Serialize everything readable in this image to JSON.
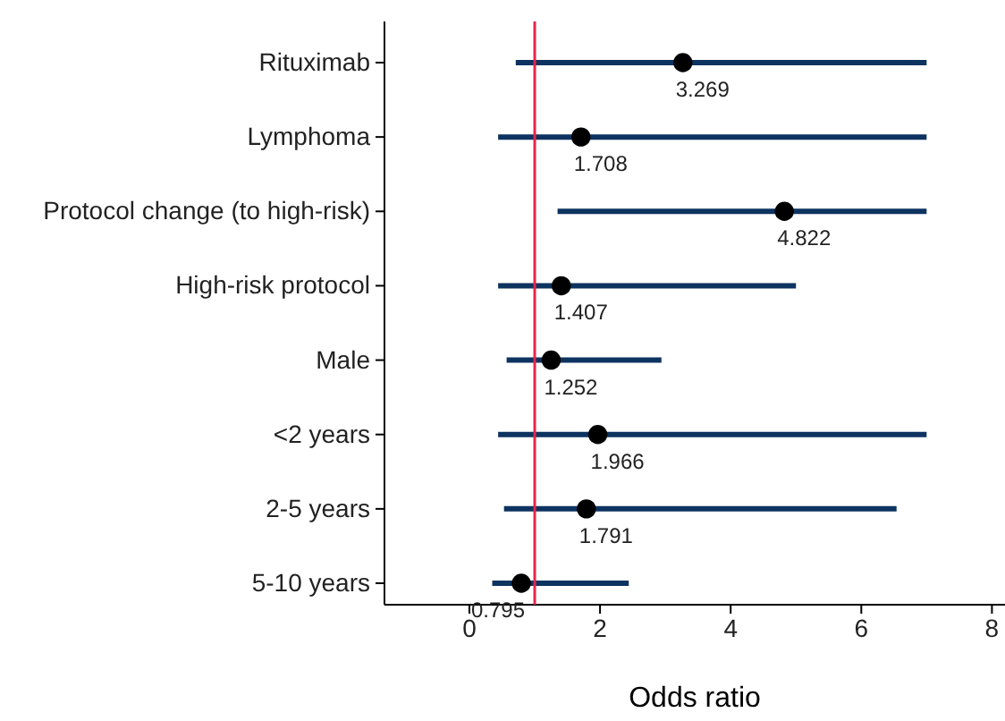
{
  "chart_data": {
    "type": "scatter",
    "orientation": "horizontal",
    "xlabel": "Odds ratio",
    "categories": [
      "Rituximab",
      "Lymphoma",
      "Protocol change (to high-risk)",
      "High-risk protocol",
      "Male",
      "<2 years",
      "2-5 years",
      "5-10 years"
    ],
    "values": [
      3.269,
      1.708,
      4.822,
      1.407,
      1.252,
      1.966,
      1.791,
      0.795
    ],
    "errors": [
      [
        0.71,
        7.0
      ],
      [
        0.44,
        7.0
      ],
      [
        1.35,
        7.0
      ],
      [
        0.44,
        5.0
      ],
      [
        0.57,
        2.94
      ],
      [
        0.44,
        7.0
      ],
      [
        0.53,
        6.54
      ],
      [
        0.35,
        2.44
      ]
    ],
    "color": "#000000",
    "marker": "circle",
    "data_labels": true,
    "xlim": [
      -1.3,
      8.2
    ],
    "xticks": [
      0,
      2,
      4,
      6,
      8
    ],
    "ref_lines": [
      {
        "axis": "x",
        "value": 1,
        "color": "#e8254a"
      }
    ]
  }
}
